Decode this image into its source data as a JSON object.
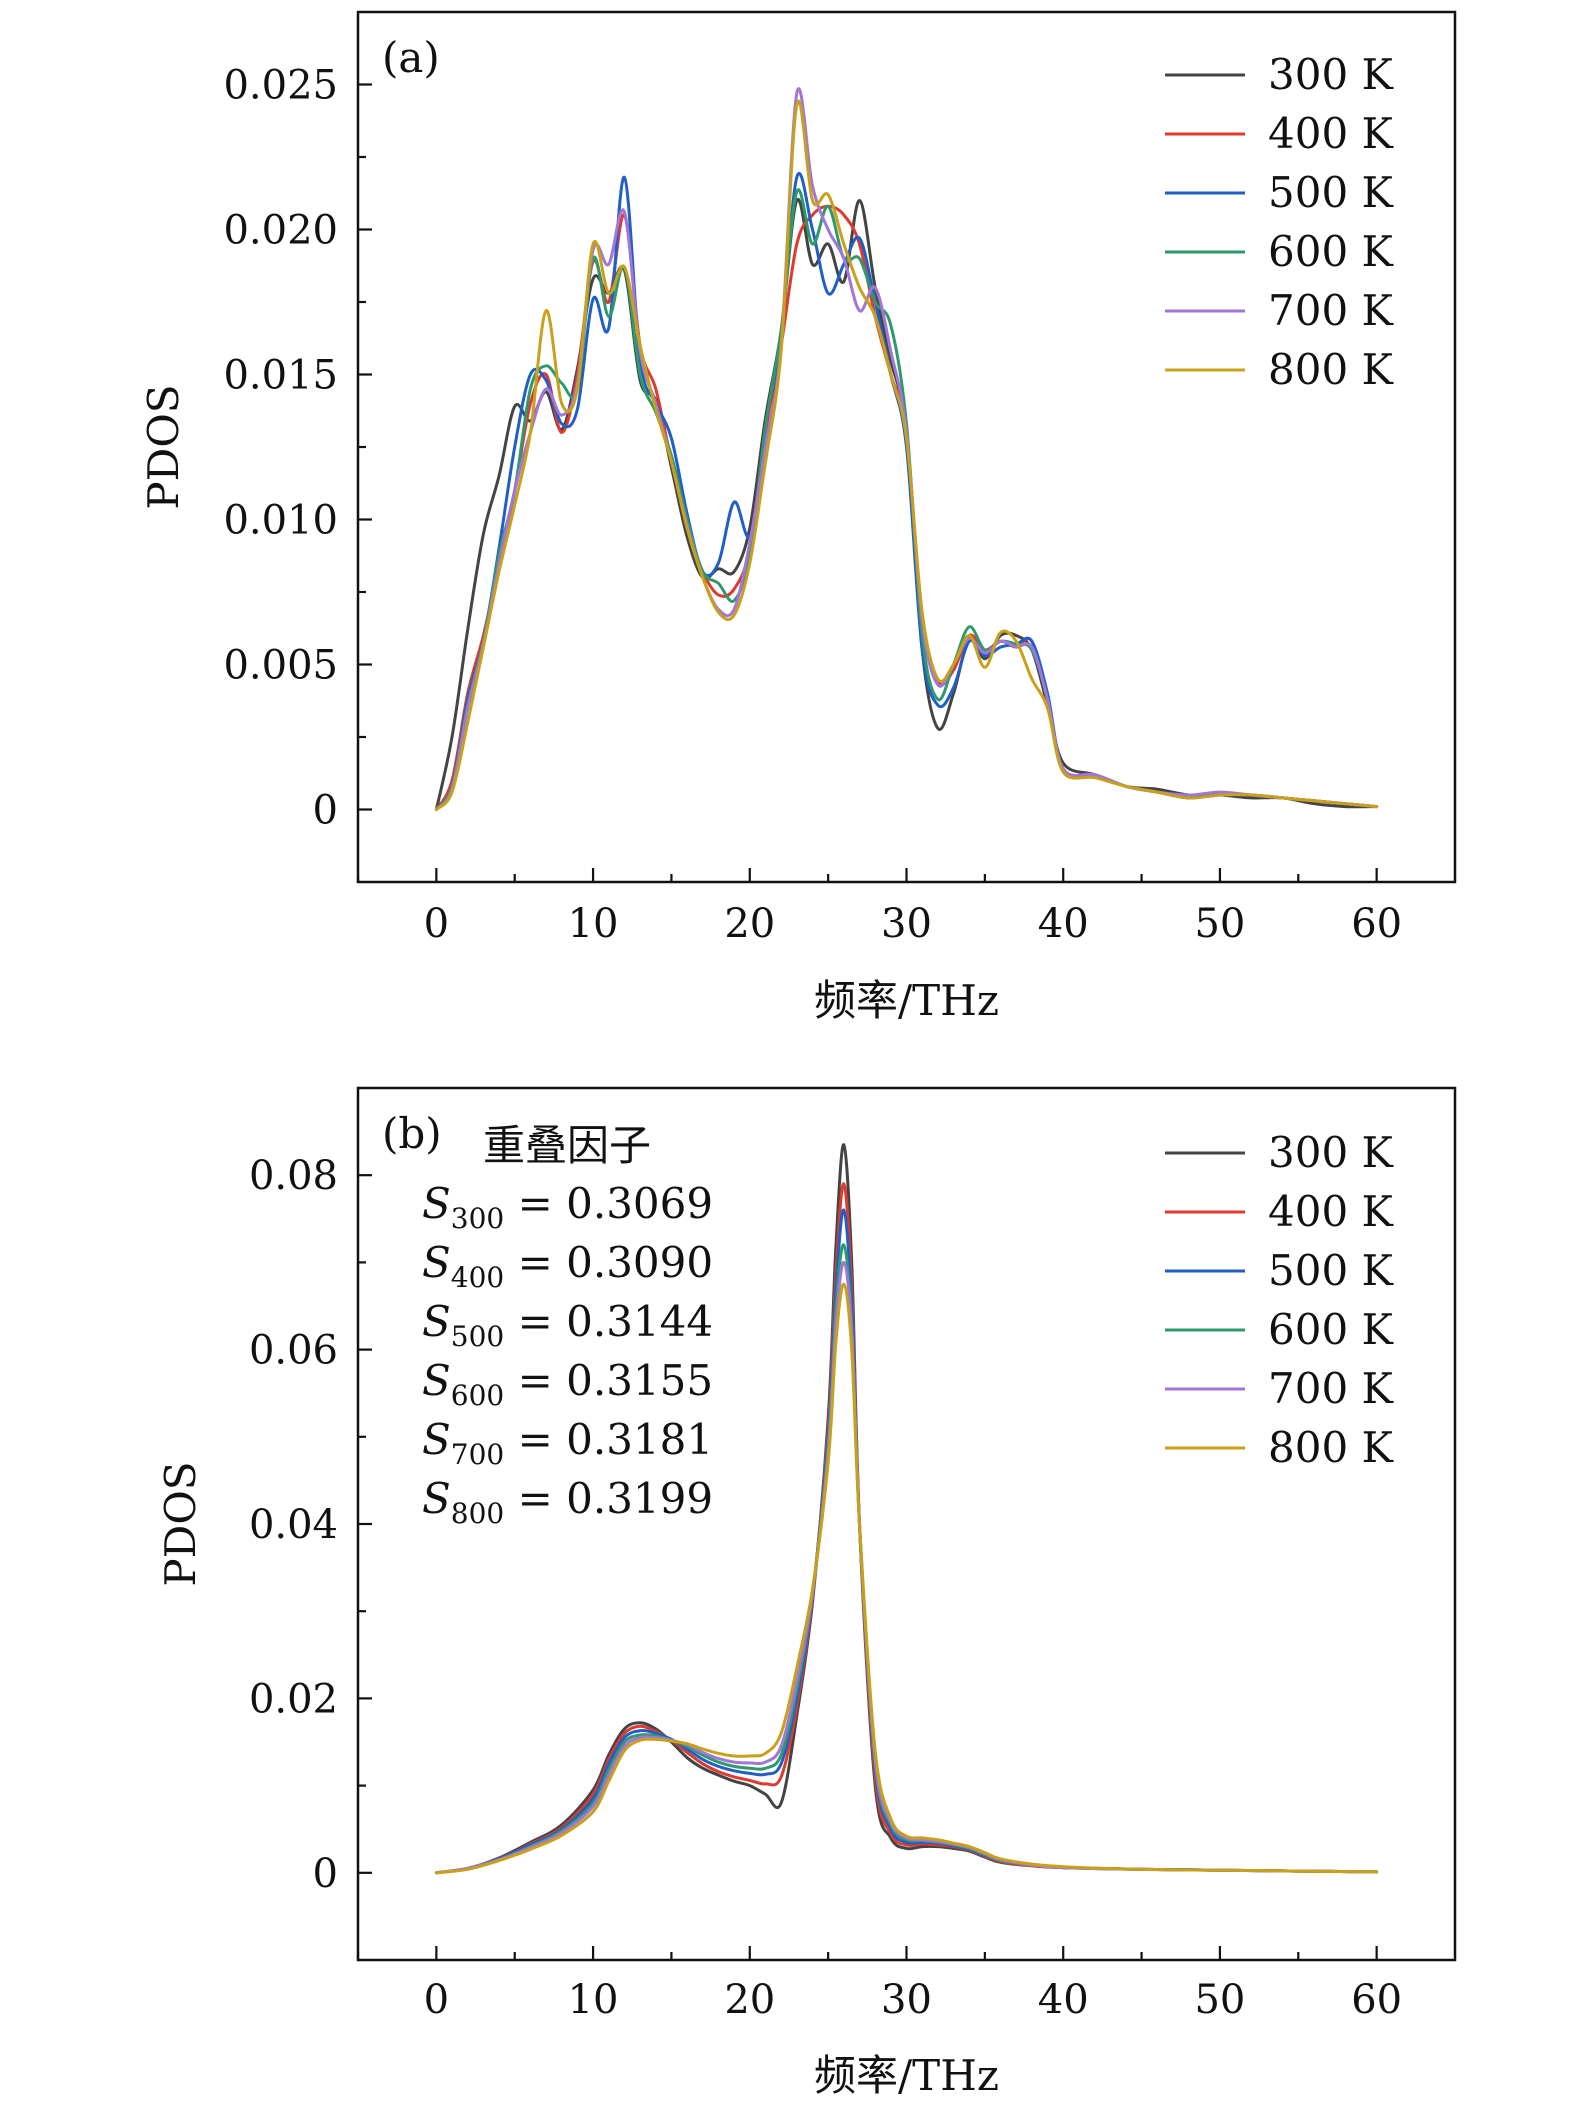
{
  "chart_data": [
    {
      "type": "line",
      "panel_label": "(a)",
      "xlabel": "频率/THz",
      "ylabel": "PDOS",
      "xlim": [
        -5,
        65
      ],
      "ylim": [
        -0.0025,
        0.0275
      ],
      "xticks": [
        0,
        10,
        20,
        30,
        40,
        50,
        60
      ],
      "yticks": [
        0,
        0.005,
        0.01,
        0.015,
        0.02,
        0.025
      ],
      "ytick_labels": [
        "0",
        "0.005",
        "0.010",
        "0.015",
        "0.020",
        "0.025"
      ],
      "grid": false,
      "legend_position": "top-right",
      "x": [
        0,
        1,
        2,
        3,
        4,
        5,
        6,
        7,
        8,
        9,
        10,
        11,
        12,
        13,
        14,
        15,
        16,
        17,
        18,
        19,
        20,
        21,
        22,
        23,
        24,
        25,
        26,
        27,
        28,
        29,
        30,
        31,
        32,
        33,
        34,
        35,
        36,
        37,
        38,
        39,
        40,
        42,
        44,
        46,
        48,
        50,
        52,
        54,
        56,
        58,
        60
      ],
      "series": [
        {
          "name": "300 K",
          "color": "#444444",
          "values": [
            0,
            0.0025,
            0.0062,
            0.0095,
            0.0115,
            0.0139,
            0.0134,
            0.0144,
            0.0131,
            0.0152,
            0.0183,
            0.0178,
            0.0186,
            0.0148,
            0.0141,
            0.0118,
            0.0094,
            0.008,
            0.0083,
            0.0082,
            0.0097,
            0.0135,
            0.0165,
            0.021,
            0.0188,
            0.0195,
            0.0182,
            0.021,
            0.018,
            0.0155,
            0.013,
            0.0055,
            0.0028,
            0.004,
            0.0059,
            0.0052,
            0.006,
            0.006,
            0.0055,
            0.0036,
            0.0016,
            0.0012,
            0.0008,
            0.0007,
            0.0005,
            0.0005,
            0.0004,
            0.0004,
            0.0002,
            0.0001,
            0.0001
          ]
        },
        {
          "name": "400 K",
          "color": "#e0392f",
          "values": [
            0,
            0.001,
            0.004,
            0.006,
            0.0085,
            0.011,
            0.014,
            0.015,
            0.013,
            0.015,
            0.0189,
            0.0175,
            0.0205,
            0.016,
            0.0145,
            0.012,
            0.0098,
            0.0082,
            0.0074,
            0.0076,
            0.009,
            0.013,
            0.016,
            0.0195,
            0.0205,
            0.0208,
            0.0205,
            0.0195,
            0.017,
            0.015,
            0.013,
            0.0065,
            0.0044,
            0.0048,
            0.006,
            0.0055,
            0.0058,
            0.0056,
            0.0058,
            0.0038,
            0.0014,
            0.0012,
            0.0008,
            0.0006,
            0.0004,
            0.0005,
            0.0005,
            0.0004,
            0.0003,
            0.0002,
            0.0001
          ]
        },
        {
          "name": "500 K",
          "color": "#1f5fc7",
          "values": [
            0,
            0.0008,
            0.0038,
            0.0058,
            0.009,
            0.0125,
            0.015,
            0.0148,
            0.0133,
            0.0138,
            0.0176,
            0.0166,
            0.0218,
            0.0155,
            0.014,
            0.0128,
            0.0102,
            0.0082,
            0.0085,
            0.0106,
            0.0094,
            0.012,
            0.0162,
            0.0218,
            0.02,
            0.0178,
            0.0188,
            0.0197,
            0.0175,
            0.015,
            0.0125,
            0.0055,
            0.0036,
            0.0042,
            0.0058,
            0.0053,
            0.0056,
            0.0057,
            0.0058,
            0.004,
            0.0014,
            0.0012,
            0.0008,
            0.0006,
            0.0005,
            0.0005,
            0.0005,
            0.0004,
            0.0003,
            0.0002,
            0.0001
          ]
        },
        {
          "name": "600 K",
          "color": "#2e9a6c",
          "values": [
            0,
            0.0008,
            0.0036,
            0.0058,
            0.0088,
            0.011,
            0.0145,
            0.0153,
            0.0147,
            0.0145,
            0.019,
            0.017,
            0.0187,
            0.015,
            0.0137,
            0.0122,
            0.01,
            0.0082,
            0.0078,
            0.0072,
            0.0088,
            0.0132,
            0.0165,
            0.0213,
            0.0195,
            0.0208,
            0.019,
            0.019,
            0.0175,
            0.0167,
            0.0133,
            0.006,
            0.0038,
            0.005,
            0.0063,
            0.0055,
            0.0058,
            0.0057,
            0.0055,
            0.0038,
            0.0013,
            0.0012,
            0.0008,
            0.0006,
            0.0004,
            0.0005,
            0.0005,
            0.0004,
            0.0003,
            0.0002,
            0.0001
          ]
        },
        {
          "name": "700 K",
          "color": "#a276d8",
          "values": [
            0,
            0.0007,
            0.0035,
            0.0057,
            0.0085,
            0.011,
            0.013,
            0.0145,
            0.0136,
            0.0147,
            0.0193,
            0.0188,
            0.0206,
            0.0158,
            0.014,
            0.012,
            0.0098,
            0.008,
            0.0069,
            0.0069,
            0.0092,
            0.0125,
            0.016,
            0.0247,
            0.0215,
            0.02,
            0.019,
            0.0172,
            0.018,
            0.0158,
            0.013,
            0.0065,
            0.0043,
            0.005,
            0.0059,
            0.0054,
            0.0058,
            0.0056,
            0.0056,
            0.0038,
            0.0014,
            0.0012,
            0.0008,
            0.0006,
            0.0005,
            0.0006,
            0.0005,
            0.0004,
            0.0003,
            0.0002,
            0.0001
          ]
        },
        {
          "name": "800 K",
          "color": "#c9a01a",
          "values": [
            0,
            0.0006,
            0.003,
            0.0056,
            0.0082,
            0.0105,
            0.013,
            0.0172,
            0.014,
            0.0145,
            0.0195,
            0.0178,
            0.0187,
            0.016,
            0.0138,
            0.012,
            0.0097,
            0.008,
            0.0068,
            0.0067,
            0.0085,
            0.012,
            0.0158,
            0.0243,
            0.021,
            0.0212,
            0.0195,
            0.018,
            0.017,
            0.015,
            0.0128,
            0.0068,
            0.0045,
            0.005,
            0.006,
            0.0049,
            0.0061,
            0.0058,
            0.0045,
            0.0035,
            0.0013,
            0.0011,
            0.0008,
            0.0006,
            0.0004,
            0.0005,
            0.0005,
            0.0004,
            0.0003,
            0.0002,
            0.0001
          ]
        }
      ]
    },
    {
      "type": "line",
      "panel_label": "(b)",
      "xlabel": "频率/THz",
      "ylabel": "PDOS",
      "xlim": [
        -5,
        65
      ],
      "ylim": [
        -0.01,
        0.09
      ],
      "xticks": [
        0,
        10,
        20,
        30,
        40,
        50,
        60
      ],
      "yticks": [
        0,
        0.02,
        0.04,
        0.06,
        0.08
      ],
      "ytick_labels": [
        "0",
        "0.02",
        "0.04",
        "0.06",
        "0.08"
      ],
      "grid": false,
      "legend_position": "top-right",
      "annotation": {
        "title": "重叠因子",
        "symbol": "S",
        "equals": " = ",
        "entries": [
          {
            "sub": "300",
            "value": "0.3069"
          },
          {
            "sub": "400",
            "value": "0.3090"
          },
          {
            "sub": "500",
            "value": "0.3144"
          },
          {
            "sub": "600",
            "value": "0.3155"
          },
          {
            "sub": "700",
            "value": "0.3181"
          },
          {
            "sub": "800",
            "value": "0.3199"
          }
        ]
      },
      "x": [
        0,
        2,
        4,
        6,
        8,
        10,
        11,
        12,
        13,
        14,
        15,
        16,
        17,
        18,
        19,
        20,
        21,
        22,
        23,
        24,
        25,
        25.5,
        26,
        26.5,
        27,
        28,
        29,
        30,
        31,
        32,
        33,
        34,
        35,
        36,
        38,
        40,
        45,
        50,
        55,
        60
      ],
      "series": [
        {
          "name": "300 K",
          "color": "#444444",
          "values": [
            0,
            0.0005,
            0.0017,
            0.0035,
            0.0055,
            0.0095,
            0.0135,
            0.0165,
            0.0172,
            0.0165,
            0.015,
            0.0132,
            0.012,
            0.0112,
            0.0105,
            0.01,
            0.009,
            0.008,
            0.018,
            0.031,
            0.052,
            0.072,
            0.0835,
            0.07,
            0.04,
            0.01,
            0.004,
            0.0028,
            0.003,
            0.003,
            0.0028,
            0.0025,
            0.0018,
            0.0012,
            0.0008,
            0.0006,
            0.0004,
            0.0003,
            0.0002,
            0.0001
          ]
        },
        {
          "name": "400 K",
          "color": "#e0392f",
          "values": [
            0,
            0.0005,
            0.0016,
            0.0033,
            0.0052,
            0.009,
            0.013,
            0.016,
            0.0168,
            0.0162,
            0.0152,
            0.0138,
            0.0125,
            0.0116,
            0.011,
            0.0106,
            0.0102,
            0.011,
            0.019,
            0.0315,
            0.051,
            0.069,
            0.079,
            0.067,
            0.04,
            0.011,
            0.0045,
            0.0032,
            0.0033,
            0.0032,
            0.003,
            0.0026,
            0.0019,
            0.0013,
            0.0008,
            0.0006,
            0.0004,
            0.0003,
            0.0002,
            0.0001
          ]
        },
        {
          "name": "500 K",
          "color": "#1f5fc7",
          "values": [
            0,
            0.0005,
            0.0016,
            0.0032,
            0.005,
            0.0085,
            0.0125,
            0.0155,
            0.0163,
            0.016,
            0.0153,
            0.0142,
            0.013,
            0.0122,
            0.0117,
            0.0114,
            0.0113,
            0.0125,
            0.02,
            0.0318,
            0.05,
            0.067,
            0.076,
            0.065,
            0.04,
            0.012,
            0.005,
            0.0035,
            0.0035,
            0.0034,
            0.0031,
            0.0027,
            0.002,
            0.0014,
            0.0009,
            0.0006,
            0.0004,
            0.0003,
            0.0002,
            0.0001
          ]
        },
        {
          "name": "600 K",
          "color": "#2e9a6c",
          "values": [
            0,
            0.0005,
            0.0015,
            0.003,
            0.0048,
            0.008,
            0.0118,
            0.015,
            0.0158,
            0.0157,
            0.0152,
            0.0145,
            0.0135,
            0.0127,
            0.0122,
            0.012,
            0.012,
            0.0135,
            0.021,
            0.032,
            0.049,
            0.065,
            0.072,
            0.063,
            0.04,
            0.0125,
            0.0055,
            0.0038,
            0.0037,
            0.0035,
            0.0032,
            0.0028,
            0.0021,
            0.0014,
            0.0009,
            0.0006,
            0.0004,
            0.0003,
            0.0002,
            0.0001
          ]
        },
        {
          "name": "700 K",
          "color": "#a276d8",
          "values": [
            0,
            0.0005,
            0.0015,
            0.0029,
            0.0046,
            0.0076,
            0.0112,
            0.0145,
            0.0155,
            0.0155,
            0.0152,
            0.0147,
            0.0138,
            0.0131,
            0.0127,
            0.0126,
            0.0127,
            0.0145,
            0.022,
            0.032,
            0.048,
            0.063,
            0.07,
            0.062,
            0.04,
            0.013,
            0.0058,
            0.004,
            0.0038,
            0.0036,
            0.0033,
            0.0029,
            0.0022,
            0.0015,
            0.0009,
            0.0006,
            0.0004,
            0.0003,
            0.0002,
            0.0001
          ]
        },
        {
          "name": "800 K",
          "color": "#c9a01a",
          "values": [
            0,
            0.0004,
            0.0014,
            0.0027,
            0.0043,
            0.007,
            0.0105,
            0.014,
            0.0152,
            0.0153,
            0.0151,
            0.0148,
            0.0142,
            0.0137,
            0.0134,
            0.0134,
            0.0137,
            0.016,
            0.0235,
            0.0325,
            0.047,
            0.061,
            0.0675,
            0.06,
            0.04,
            0.014,
            0.0062,
            0.0042,
            0.004,
            0.0038,
            0.0034,
            0.003,
            0.0023,
            0.0016,
            0.001,
            0.0007,
            0.0004,
            0.0003,
            0.0002,
            0.0001
          ]
        }
      ]
    }
  ]
}
